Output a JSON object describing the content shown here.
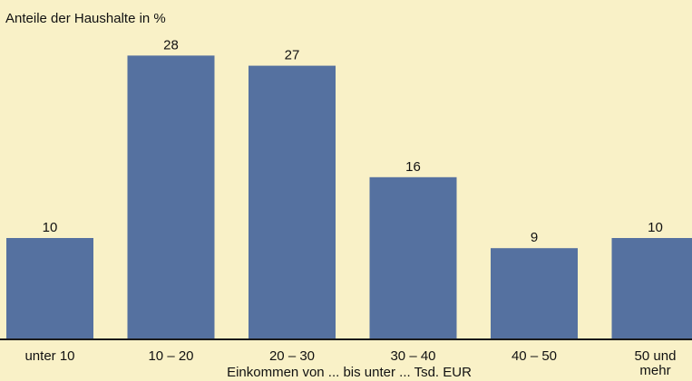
{
  "chart_data": {
    "type": "bar",
    "ylabel": "Anteile der Haushalte in %",
    "xlabel": "Einkommen von ... bis unter ... Tsd. EUR",
    "categories": [
      "unter 10",
      "10 – 20",
      "20 – 30",
      "30 – 40",
      "40 – 50",
      "50 und mehr"
    ],
    "values": [
      10,
      28,
      27,
      16,
      9,
      10
    ],
    "ylim": [
      0,
      30
    ],
    "grid": false,
    "legend": "none",
    "bar_color": "#5571a0",
    "background_color": "#f9f1c7"
  }
}
